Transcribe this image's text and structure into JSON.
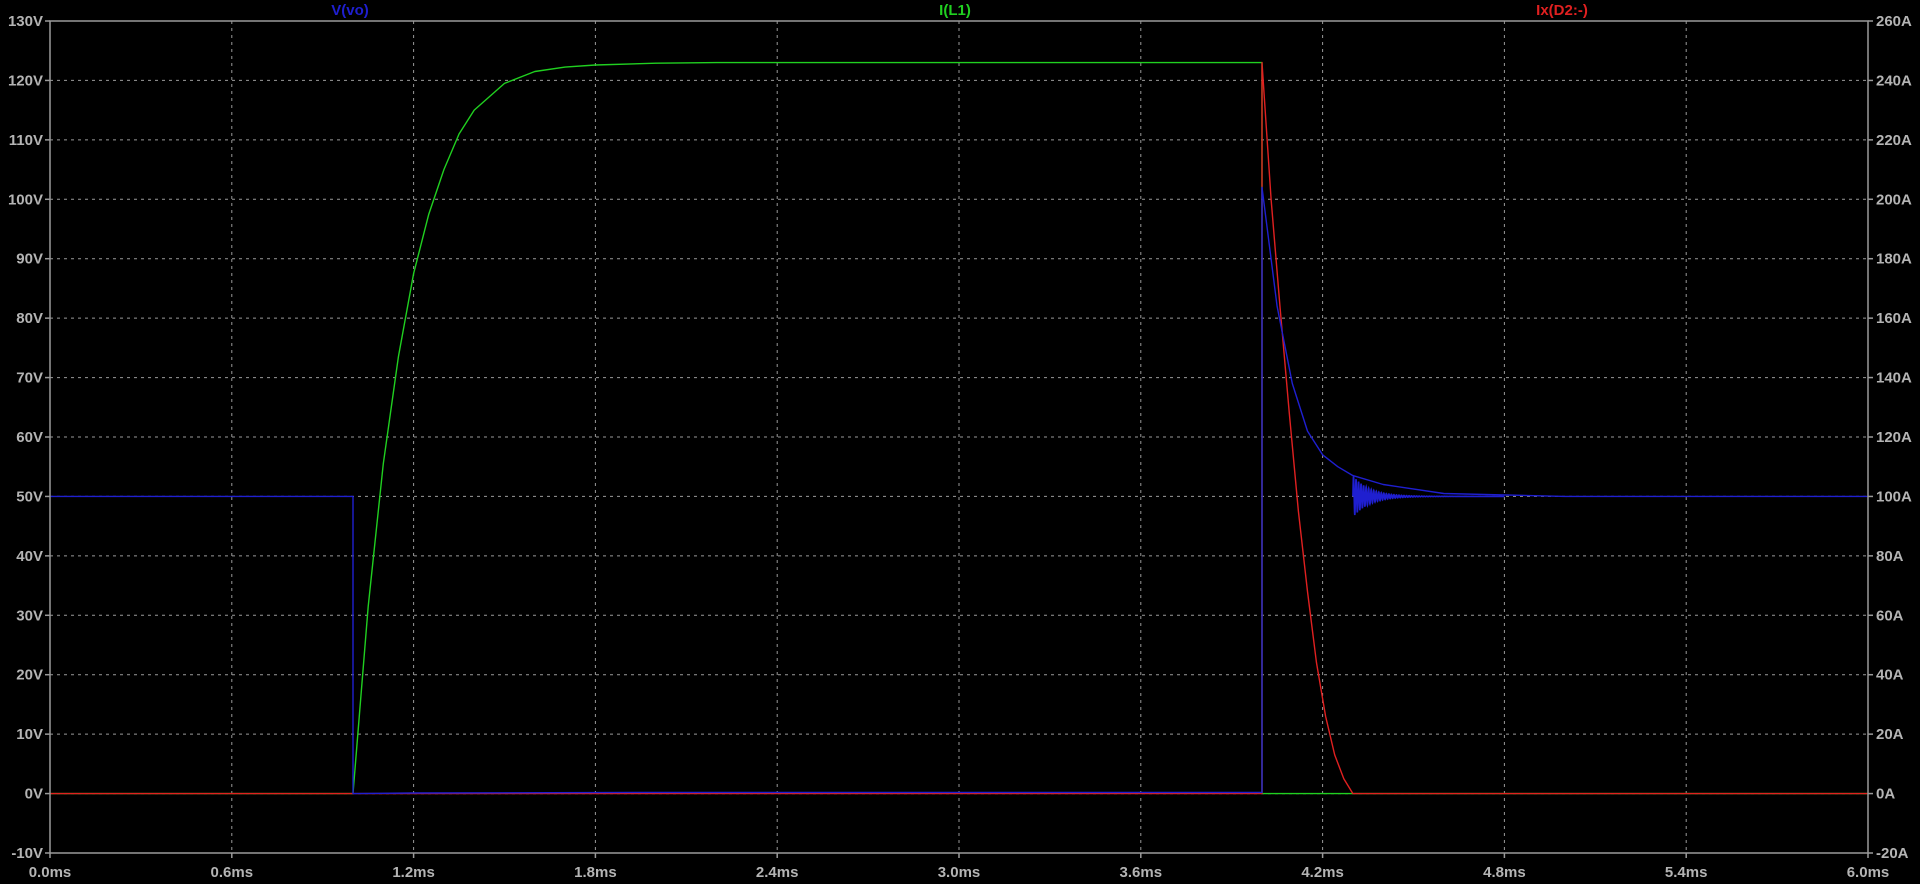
{
  "chart_data": {
    "type": "line",
    "title": "",
    "xlabel": "",
    "ylabel": "",
    "y2label": "",
    "grid": true,
    "background": "#000000",
    "grid_color": "#9a9a9a",
    "axis_color": "#9a9a9a",
    "tick_color": "#b4b4b4",
    "legend_placement": "top",
    "xlim": [
      0,
      6.0
    ],
    "x_unit": "ms",
    "ylim": [
      -10,
      130
    ],
    "y_unit": "V",
    "y2lim": [
      -20,
      260
    ],
    "y2_unit": "A",
    "x_ticks": [
      "0.0ms",
      "0.6ms",
      "1.2ms",
      "1.8ms",
      "2.4ms",
      "3.0ms",
      "3.6ms",
      "4.2ms",
      "4.8ms",
      "5.4ms",
      "6.0ms"
    ],
    "y_ticks": [
      "-10V",
      "0V",
      "10V",
      "20V",
      "30V",
      "40V",
      "50V",
      "60V",
      "70V",
      "80V",
      "90V",
      "100V",
      "110V",
      "120V",
      "130V"
    ],
    "y2_ticks": [
      "-20A",
      "0A",
      "20A",
      "40A",
      "60A",
      "80A",
      "100A",
      "120A",
      "140A",
      "160A",
      "180A",
      "200A",
      "220A",
      "240A",
      "260A"
    ],
    "series": [
      {
        "name": "V(vo)",
        "color": "#1f1fd0",
        "axis": "left",
        "x": [
          0,
          1.0,
          1.0,
          1.2,
          2.0,
          3.0,
          4.0,
          4.0,
          4.05,
          4.1,
          4.15,
          4.2,
          4.25,
          4.3,
          4.4,
          4.6,
          5.0,
          6.0
        ],
        "y": [
          50,
          50,
          0,
          0.1,
          0.2,
          0.2,
          0.2,
          102,
          82,
          69,
          61,
          57,
          55,
          53.5,
          52,
          50.5,
          50,
          50
        ]
      },
      {
        "name": "I(L1)",
        "color": "#20d020",
        "axis": "right",
        "x": [
          0,
          1.0,
          1.05,
          1.1,
          1.15,
          1.2,
          1.25,
          1.3,
          1.35,
          1.4,
          1.5,
          1.6,
          1.7,
          1.8,
          2.0,
          2.2,
          2.4,
          3.0,
          3.6,
          4.0,
          4.0,
          6.0
        ],
        "y": [
          0,
          0,
          63,
          111,
          147,
          175,
          195,
          210,
          222,
          230,
          239,
          243,
          244.5,
          245.2,
          245.8,
          246,
          246,
          246,
          246,
          246,
          0,
          0
        ]
      },
      {
        "name": "Ix(D2:-)",
        "color": "#e02020",
        "axis": "right",
        "x": [
          0,
          4.0,
          4.0,
          4.03,
          4.06,
          4.09,
          4.12,
          4.15,
          4.18,
          4.21,
          4.24,
          4.27,
          4.3,
          4.35,
          6.0
        ],
        "y": [
          0,
          0,
          246,
          200,
          163,
          128,
          95,
          68,
          44,
          26,
          13,
          5,
          0,
          0,
          0
        ]
      }
    ],
    "oscillation": {
      "series": "V(vo)",
      "x_start": 4.3,
      "x_end": 4.8,
      "center": 50,
      "amplitude": 3.5,
      "cycles": 60,
      "decay": 9
    }
  }
}
